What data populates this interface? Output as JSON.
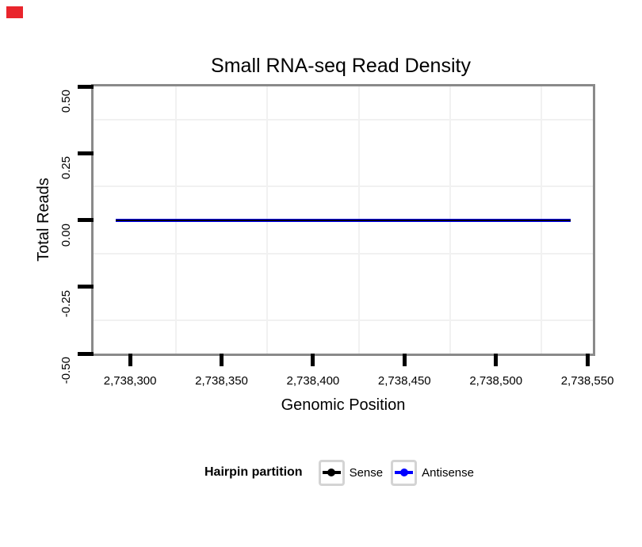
{
  "page": {
    "background": "#FFFFFF",
    "red_marker_color": "#E9252C"
  },
  "chart_data": {
    "type": "line",
    "title": "Small RNA-seq Read Density",
    "xlabel": "Genomic Position",
    "ylabel": "Total Reads",
    "xlim": [
      2738280,
      2738553
    ],
    "ylim": [
      -0.5,
      0.5
    ],
    "x_ticks": {
      "values": [
        2738300,
        2738350,
        2738400,
        2738450,
        2738500,
        2738550
      ],
      "labels": [
        "2,738,300",
        "2,738,350",
        "2,738,400",
        "2,738,450",
        "2,738,500",
        "2,738,550"
      ]
    },
    "y_ticks": {
      "values": [
        0.5,
        0.25,
        0,
        -0.25,
        -0.5
      ],
      "labels": [
        "0.50",
        "0.25",
        "0.00",
        "-0.25",
        "-0.50"
      ]
    },
    "grid": {
      "major": false,
      "minor": true,
      "minor_color": "#F1F1F1"
    },
    "panel_border_color": "#8A8A8A",
    "tick_color": "#000000",
    "series": [
      {
        "name": "Sense",
        "color": "#000000",
        "x": [
          2738292,
          2738541
        ],
        "y": [
          0,
          0
        ]
      },
      {
        "name": "Antisense",
        "color": "#0000FF",
        "x": [
          2738292,
          2738541
        ],
        "y": [
          0,
          0
        ]
      }
    ],
    "legend": {
      "title": "Hairpin partition",
      "position": "bottom",
      "entries": [
        {
          "label": "Sense",
          "color": "#000000"
        },
        {
          "label": "Antisense",
          "color": "#0000FF"
        }
      ]
    }
  }
}
